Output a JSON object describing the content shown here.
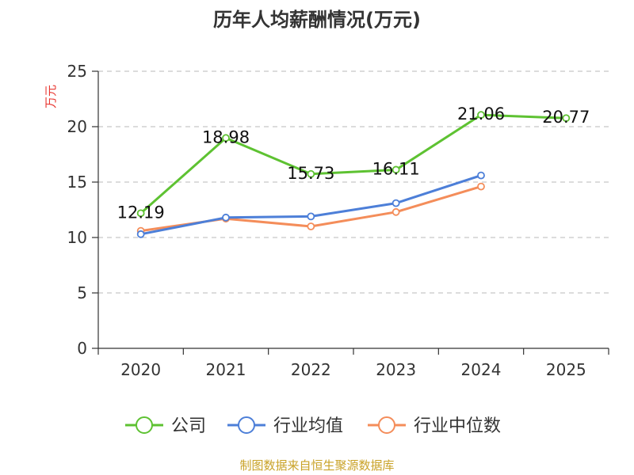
{
  "chart_data": {
    "type": "line",
    "title": "历年人均薪酬情况(万元)",
    "ylabel": "万元",
    "xlabel": "",
    "categories": [
      "2020",
      "2021",
      "2022",
      "2023",
      "2024",
      "2025"
    ],
    "ylim": [
      0,
      25
    ],
    "yticks": [
      "0",
      "5",
      "10",
      "15",
      "20",
      "25"
    ],
    "grid": true,
    "legend_position": "bottom",
    "series": [
      {
        "name": "公司",
        "color": "#5ec232",
        "values": [
          12.19,
          18.98,
          15.73,
          16.11,
          21.06,
          20.77
        ],
        "labels": [
          "12.19",
          "18.98",
          "15.73",
          "16.11",
          "21.06",
          "20.77"
        ]
      },
      {
        "name": "行业均值",
        "color": "#4d7fd8",
        "values": [
          10.3,
          11.8,
          11.9,
          13.1,
          15.6,
          null
        ],
        "labels": []
      },
      {
        "name": "行业中位数",
        "color": "#f48d5a",
        "values": [
          10.6,
          11.7,
          11.0,
          12.3,
          14.6,
          null
        ],
        "labels": []
      }
    ]
  },
  "source_text": "制图数据来自恒生聚源数据库"
}
